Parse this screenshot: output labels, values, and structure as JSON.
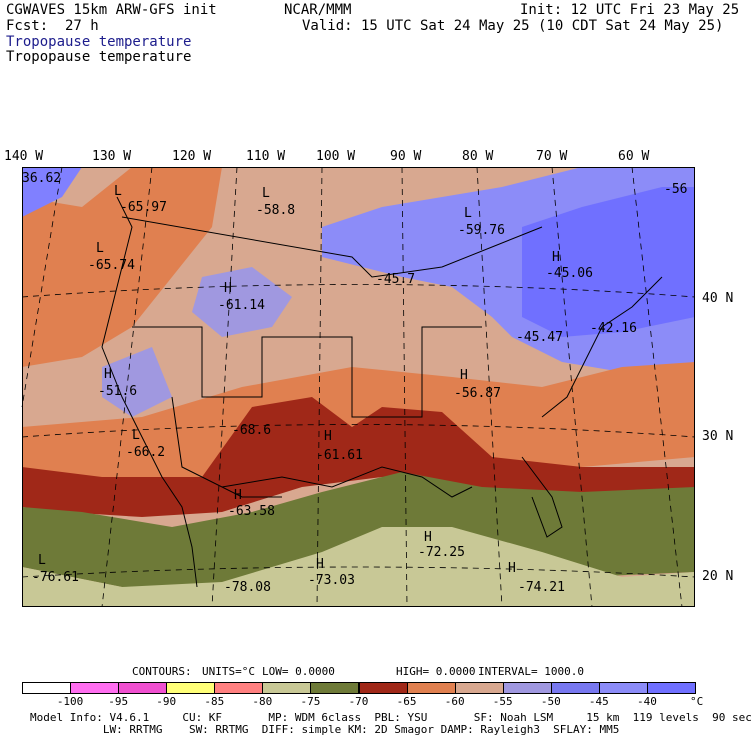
{
  "header": {
    "model": "CGWAVES 15km ARW-GFS init",
    "org": "NCAR/MMM",
    "init": "Init: 12 UTC Fri 23 May 25",
    "fcst_label": "Fcst:",
    "fcst_value": "27 h",
    "valid": "Valid: 15 UTC Sat 24 May 25 (10 CDT Sat 24 May 25)",
    "field_1": "Tropopause temperature",
    "field_2": "Tropopause temperature"
  },
  "axes": {
    "lon_labels": [
      "140 W",
      "130 W",
      "120 W",
      "110 W",
      "100 W",
      "90 W",
      "80 W",
      "70 W",
      "60 W"
    ],
    "lat_labels": [
      "40 N",
      "30 N",
      "20 N"
    ]
  },
  "map_labels": [
    {
      "text": "36.62"
    },
    {
      "text": "L"
    },
    {
      "text": "-65.97"
    },
    {
      "text": "L"
    },
    {
      "text": "-58.8"
    },
    {
      "text": "L"
    },
    {
      "text": "-59.76"
    },
    {
      "text": "-56"
    },
    {
      "text": "L"
    },
    {
      "text": "-65.74"
    },
    {
      "text": "H"
    },
    {
      "text": "-61.14"
    },
    {
      "text": "-45.7"
    },
    {
      "text": "H"
    },
    {
      "text": "-45.06"
    },
    {
      "text": "-45.47"
    },
    {
      "text": "-42.16"
    },
    {
      "text": "H"
    },
    {
      "text": "-51.6"
    },
    {
      "text": "H"
    },
    {
      "text": "-56.87"
    },
    {
      "text": "-68.6"
    },
    {
      "text": "H"
    },
    {
      "text": "-61.61"
    },
    {
      "text": "L"
    },
    {
      "text": "-66.2"
    },
    {
      "text": "H"
    },
    {
      "text": "-63.58"
    },
    {
      "text": "H"
    },
    {
      "text": "-72.25"
    },
    {
      "text": "L"
    },
    {
      "text": "-76.61"
    },
    {
      "text": "-78.08"
    },
    {
      "text": "H"
    },
    {
      "text": "-73.03"
    },
    {
      "text": "H"
    },
    {
      "text": "-74.21"
    }
  ],
  "contours": {
    "label": "CONTOURS:",
    "units": "UNITS=°C",
    "low": "LOW= 0.0000",
    "high": "HIGH= 0.0000",
    "interval": "INTERVAL= 1000.0"
  },
  "colorbar": {
    "colors": [
      "#ffffff",
      "#ff6ef0",
      "#f050d0",
      "#ffff78",
      "#ff8080",
      "#c8c896",
      "#6e7a38",
      "#a02818",
      "#e08050",
      "#d8a890",
      "#a098e0",
      "#7878f0",
      "#8c8cf8",
      "#7070ff"
    ],
    "labels": [
      "-100",
      "-95",
      "-90",
      "-85",
      "-80",
      "-75",
      "-70",
      "-65",
      "-60",
      "-55",
      "-50",
      "-45",
      "-40"
    ],
    "unit": "°C"
  },
  "footer": {
    "line1": "Model Info: V4.6.1     CU: KF       MP: WDM 6class  PBL: YSU       SF: Noah LSM     15 km  119 levels  90 sec",
    "line2": "           LW: RRTMG    SW: RRTMG  DIFF: simple KM: 2D Smagor DAMP: Rayleigh3  SFLAY: MM5"
  }
}
